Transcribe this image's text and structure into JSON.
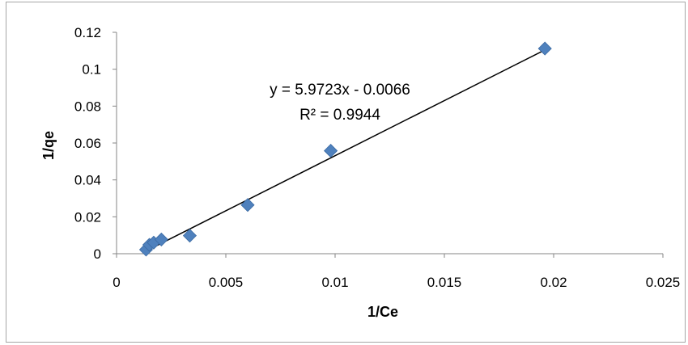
{
  "chart_data": {
    "type": "scatter",
    "title": "",
    "xlabel": "1/Ce",
    "ylabel": "1/qe",
    "xlim": [
      0,
      0.025
    ],
    "ylim": [
      0,
      0.12
    ],
    "x_ticks": [
      "0",
      "0.005",
      "0.01",
      "0.015",
      "0.02",
      "0.025"
    ],
    "y_ticks": [
      "0",
      "0.02",
      "0.04",
      "0.06",
      "0.08",
      "0.1",
      "0.12"
    ],
    "grid": false,
    "legend": "none",
    "marker_color": "#4f81bd",
    "points": [
      {
        "x": 0.00135,
        "y": 0.0022
      },
      {
        "x": 0.0015,
        "y": 0.0048
      },
      {
        "x": 0.0017,
        "y": 0.006
      },
      {
        "x": 0.00205,
        "y": 0.0077
      },
      {
        "x": 0.00335,
        "y": 0.0098
      },
      {
        "x": 0.006,
        "y": 0.0264
      },
      {
        "x": 0.0098,
        "y": 0.0558
      },
      {
        "x": 0.0196,
        "y": 0.1112
      }
    ],
    "trendline": {
      "slope": 5.9723,
      "intercept": -0.0066,
      "x_range": [
        0.0012,
        0.0197
      ],
      "equation": "y = 5.9723x - 0.0066",
      "r_squared": "R² = 0.9944"
    }
  }
}
